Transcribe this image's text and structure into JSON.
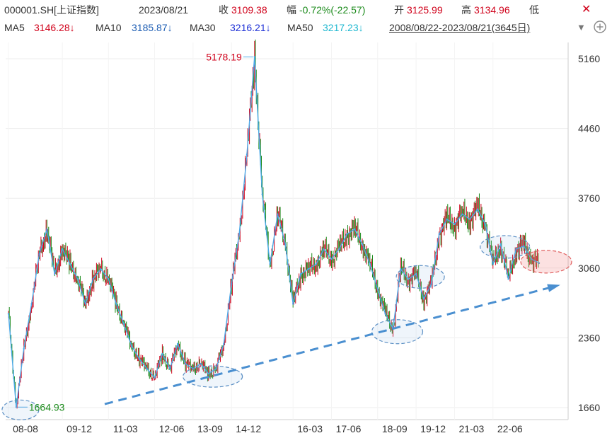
{
  "header": {
    "code": "000001.SH[上证指数]",
    "date": "2023/08/21",
    "close_label": "收",
    "close": "3109.38",
    "change_label": "幅",
    "change": "-0.72%(-22.57)",
    "open_label": "开",
    "open": "3125.99",
    "high_label": "高",
    "high": "3134.96",
    "low_label": "低"
  },
  "ma": {
    "ma5_label": "MA5",
    "ma5": "3146.28↓",
    "ma10_label": "MA10",
    "ma10": "3185.87↓",
    "ma30_label": "MA30",
    "ma30": "3216.21↓",
    "ma50_label": "MA50",
    "ma50": "3217.23↓",
    "range": "2008/08/22-2023/08/21(3645日)"
  },
  "colors": {
    "up": "#d0021b",
    "down": "#1a8a1a",
    "ma_line": "#4aa8e8",
    "trend": "#4a8fd0",
    "grid": "#eeeeee"
  },
  "icons": [
    "close-icon",
    "dropdown-triangle-icon",
    "add-icon"
  ],
  "chart_data": {
    "type": "line",
    "series": [
      {
        "values": [
          [
            "08-08",
            2600
          ],
          [
            "08-08",
            1664.93
          ],
          [
            "08-08",
            2250
          ],
          [
            "08-08",
            2700
          ],
          [
            "08-08",
            3200
          ],
          [
            "08-08",
            3450
          ],
          [
            "08-08",
            3000
          ],
          [
            "09-12",
            3250
          ],
          [
            "09-12",
            3100
          ],
          [
            "09-12",
            2950
          ],
          [
            "09-12",
            2700
          ],
          [
            "09-12",
            2950
          ],
          [
            "09-12",
            3050
          ],
          [
            "11-03",
            2950
          ],
          [
            "11-03",
            2700
          ],
          [
            "11-03",
            2500
          ],
          [
            "11-03",
            2280
          ],
          [
            "11-03",
            2150
          ],
          [
            "11-03",
            2050
          ],
          [
            "12-06",
            1960
          ],
          [
            "12-06",
            2200
          ],
          [
            "12-06",
            2050
          ],
          [
            "12-06",
            2300
          ],
          [
            "12-06",
            2100
          ],
          [
            "13-09",
            2050
          ],
          [
            "13-09",
            2100
          ],
          [
            "13-09",
            2000
          ],
          [
            "13-09",
            2050
          ],
          [
            "13-09",
            2300
          ],
          [
            "14-12",
            2900
          ],
          [
            "14-12",
            3400
          ],
          [
            "14-12",
            4200
          ],
          [
            "14-12",
            5178.19
          ],
          [
            "14-12",
            3800
          ],
          [
            "14-12",
            3100
          ],
          [
            "14-12",
            3600
          ],
          [
            "14-12",
            3300
          ],
          [
            "16-03",
            2700
          ],
          [
            "16-03",
            3000
          ],
          [
            "16-03",
            3050
          ],
          [
            "16-03",
            3100
          ],
          [
            "16-03",
            3250
          ],
          [
            "17-06",
            3150
          ],
          [
            "17-06",
            3250
          ],
          [
            "17-06",
            3400
          ],
          [
            "17-06",
            3450
          ],
          [
            "17-06",
            3300
          ],
          [
            "17-06",
            3100
          ],
          [
            "18-09",
            2850
          ],
          [
            "18-09",
            2600
          ],
          [
            "18-09",
            2450
          ],
          [
            "18-09",
            3050
          ],
          [
            "18-09",
            2950
          ],
          [
            "19-12",
            3000
          ],
          [
            "19-12",
            2750
          ],
          [
            "19-12",
            2900
          ],
          [
            "19-12",
            3400
          ],
          [
            "19-12",
            3550
          ],
          [
            "21-03",
            3500
          ],
          [
            "21-03",
            3600
          ],
          [
            "21-03",
            3550
          ],
          [
            "21-03",
            3650
          ],
          [
            "21-03",
            3500
          ],
          [
            "22-06",
            3100
          ],
          [
            "22-06",
            3300
          ],
          [
            "22-06",
            2950
          ],
          [
            "22-06",
            3250
          ],
          [
            "22-06",
            3280
          ],
          [
            "22-06",
            3150
          ],
          [
            "22-06",
            3109.38
          ]
        ]
      }
    ],
    "x_ticks": [
      "08-08",
      "09-12",
      "11-03",
      "12-06",
      "13-09",
      "14-12",
      "16-03",
      "17-06",
      "18-09",
      "19-12",
      "21-03",
      "22-06"
    ],
    "y_ticks": [
      5160,
      4460,
      3760,
      3060,
      2360,
      1660
    ],
    "ylim": [
      1560,
      5260
    ],
    "annotations": [
      {
        "text": "5178.19",
        "value": 5178.19
      },
      {
        "text": "1664.93",
        "value": 1664.93
      }
    ],
    "grid": true
  }
}
